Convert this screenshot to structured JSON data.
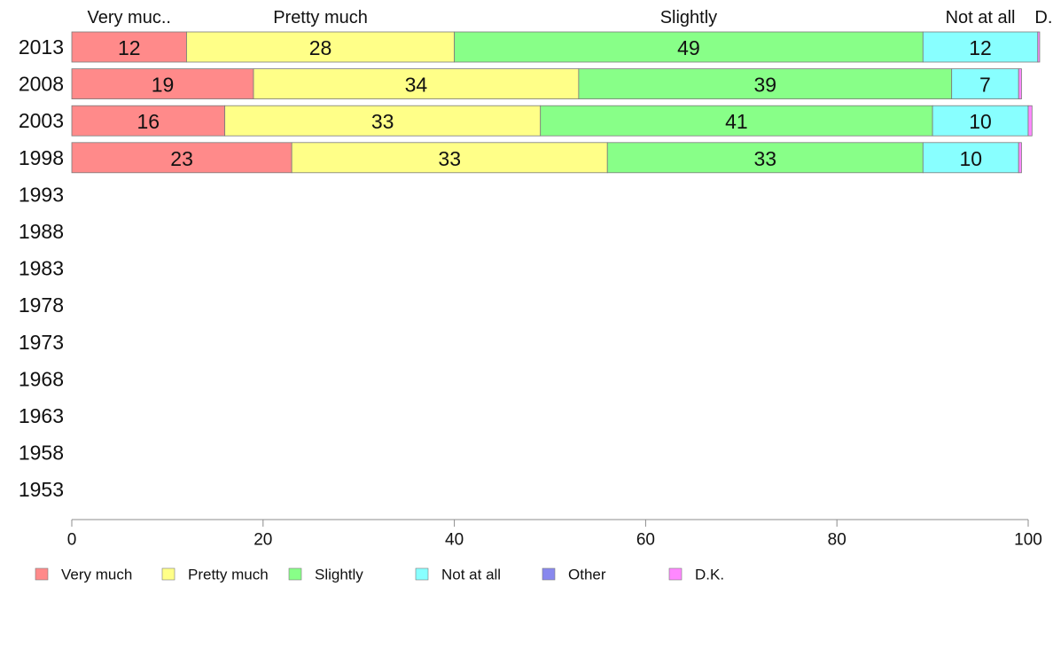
{
  "chart_data": {
    "type": "bar",
    "orientation": "horizontal",
    "stacked": true,
    "categories": [
      "2013",
      "2008",
      "2003",
      "1998",
      "1993",
      "1988",
      "1983",
      "1978",
      "1973",
      "1968",
      "1963",
      "1958",
      "1953"
    ],
    "series": [
      {
        "name": "Very much",
        "short_label": "Very muc..",
        "color": "#ff8a8a",
        "values": [
          12,
          19,
          16,
          23,
          null,
          null,
          null,
          null,
          null,
          null,
          null,
          null,
          null
        ]
      },
      {
        "name": "Pretty much",
        "short_label": "Pretty much",
        "color": "#ffff88",
        "values": [
          28,
          34,
          33,
          33,
          null,
          null,
          null,
          null,
          null,
          null,
          null,
          null,
          null
        ]
      },
      {
        "name": "Slightly",
        "short_label": "Slightly",
        "color": "#88ff88",
        "values": [
          49,
          39,
          41,
          33,
          null,
          null,
          null,
          null,
          null,
          null,
          null,
          null,
          null
        ]
      },
      {
        "name": "Not at all",
        "short_label": "Not at all",
        "color": "#88ffff",
        "values": [
          12,
          7,
          10,
          10,
          null,
          null,
          null,
          null,
          null,
          null,
          null,
          null,
          null
        ]
      },
      {
        "name": "Other",
        "short_label": "",
        "color": "#8888ee",
        "values": [
          0,
          0,
          0,
          0,
          null,
          null,
          null,
          null,
          null,
          null,
          null,
          null,
          null
        ]
      },
      {
        "name": "D.K.",
        "short_label": "D..",
        "color": "#ff88ff",
        "values": [
          0.2,
          0.3,
          0.4,
          0.3,
          null,
          null,
          null,
          null,
          null,
          null,
          null,
          null,
          null
        ]
      }
    ],
    "xlim": [
      0,
      100
    ],
    "xticks": [
      0,
      20,
      40,
      60,
      80,
      100
    ],
    "title": "",
    "xlabel": "",
    "ylabel": "",
    "grid": false,
    "legend_position": "bottom"
  }
}
